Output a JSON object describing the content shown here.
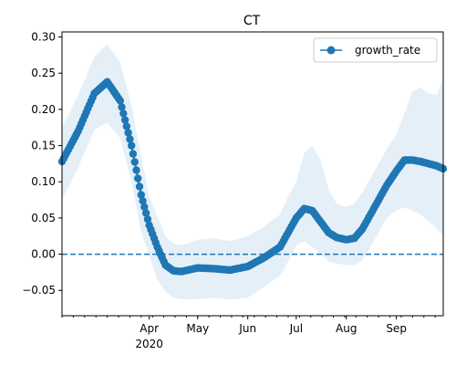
{
  "chart_data": {
    "type": "line",
    "title": "CT",
    "xlabel": "",
    "ylabel": "",
    "ylim": [
      -0.085,
      0.307
    ],
    "xlim": [
      "2020-02-07",
      "2020-09-30"
    ],
    "x_ticks": [
      {
        "date": "2020-04-01",
        "label": "Apr",
        "sublabel": "2020"
      },
      {
        "date": "2020-05-01",
        "label": "May",
        "sublabel": ""
      },
      {
        "date": "2020-06-01",
        "label": "Jun",
        "sublabel": ""
      },
      {
        "date": "2020-07-01",
        "label": "Jul",
        "sublabel": ""
      },
      {
        "date": "2020-08-01",
        "label": "Aug",
        "sublabel": ""
      },
      {
        "date": "2020-09-01",
        "label": "Sep",
        "sublabel": ""
      }
    ],
    "y_ticks": [
      -0.05,
      0.0,
      0.05,
      0.1,
      0.15,
      0.2,
      0.25,
      0.3
    ],
    "y_tick_labels": [
      "−0.05",
      "0.00",
      "0.05",
      "0.10",
      "0.15",
      "0.20",
      "0.25",
      "0.30"
    ],
    "legend": {
      "position": "top-right",
      "label": "growth_rate"
    },
    "reference_line": {
      "y": 0.0,
      "style": "dashed"
    },
    "grid": false,
    "colors": {
      "line": "#1f77b4",
      "band": "#dce9f5",
      "axis": "#000000"
    },
    "series": [
      {
        "name": "growth_rate",
        "x": [
          "2020-02-07",
          "2020-02-17",
          "2020-02-27",
          "2020-03-06",
          "2020-03-14",
          "2020-03-21",
          "2020-03-27",
          "2020-04-01",
          "2020-04-06",
          "2020-04-11",
          "2020-04-16",
          "2020-04-21",
          "2020-05-01",
          "2020-05-11",
          "2020-05-21",
          "2020-06-01",
          "2020-06-11",
          "2020-06-21",
          "2020-06-26",
          "2020-07-01",
          "2020-07-06",
          "2020-07-11",
          "2020-07-16",
          "2020-07-21",
          "2020-07-26",
          "2020-08-01",
          "2020-08-06",
          "2020-08-11",
          "2020-08-16",
          "2020-08-21",
          "2020-08-26",
          "2020-09-01",
          "2020-09-06",
          "2020-09-11",
          "2020-09-16",
          "2020-09-21",
          "2020-09-26",
          "2020-09-30"
        ],
        "values": [
          0.128,
          0.17,
          0.222,
          0.238,
          0.212,
          0.15,
          0.082,
          0.04,
          0.01,
          -0.015,
          -0.023,
          -0.024,
          -0.019,
          -0.02,
          -0.022,
          -0.017,
          -0.005,
          0.01,
          0.03,
          0.05,
          0.063,
          0.06,
          0.045,
          0.03,
          0.023,
          0.02,
          0.022,
          0.035,
          0.055,
          0.075,
          0.095,
          0.115,
          0.13,
          0.13,
          0.128,
          0.125,
          0.122,
          0.118
        ],
        "lower": [
          0.075,
          0.12,
          0.172,
          0.182,
          0.16,
          0.1,
          0.03,
          -0.002,
          -0.035,
          -0.052,
          -0.06,
          -0.062,
          -0.062,
          -0.06,
          -0.063,
          -0.06,
          -0.045,
          -0.03,
          -0.01,
          0.012,
          0.018,
          0.01,
          0.0,
          -0.01,
          -0.013,
          -0.015,
          -0.015,
          -0.008,
          0.01,
          0.03,
          0.05,
          0.06,
          0.065,
          0.06,
          0.055,
          0.045,
          0.035,
          0.025
        ],
        "upper": [
          0.175,
          0.22,
          0.272,
          0.29,
          0.265,
          0.205,
          0.135,
          0.08,
          0.052,
          0.025,
          0.015,
          0.012,
          0.02,
          0.022,
          0.018,
          0.025,
          0.038,
          0.055,
          0.08,
          0.1,
          0.14,
          0.15,
          0.13,
          0.09,
          0.07,
          0.065,
          0.07,
          0.085,
          0.105,
          0.125,
          0.145,
          0.165,
          0.195,
          0.225,
          0.23,
          0.222,
          0.22,
          0.245
        ]
      }
    ]
  }
}
